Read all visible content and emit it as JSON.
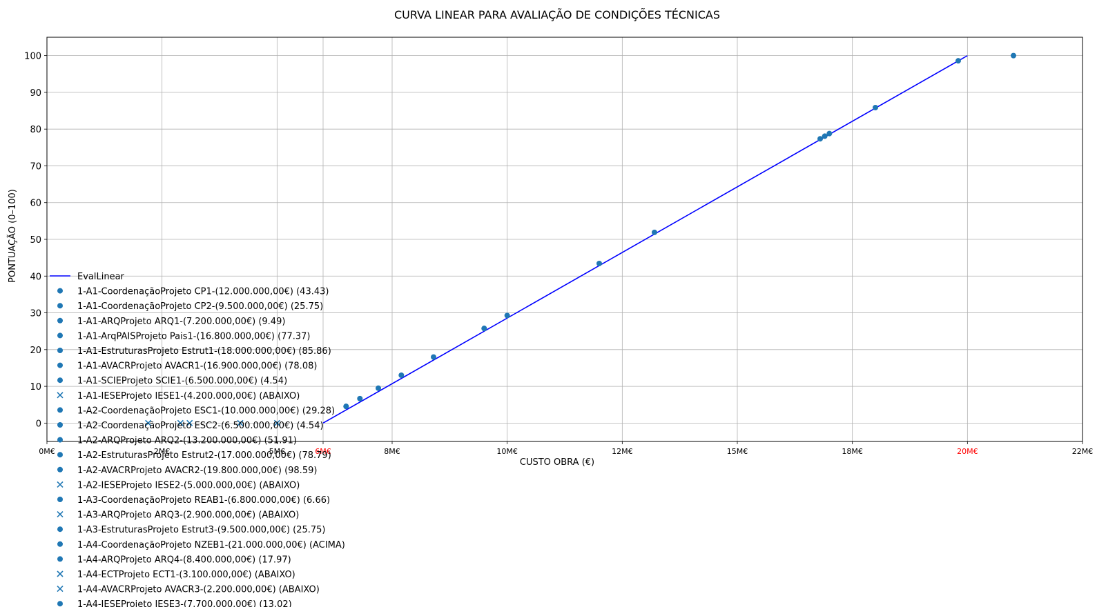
{
  "chart_data": {
    "type": "scatter",
    "title": "CURVA LINEAR PARA AVALIAÇÃO DE CONDIÇÕES TÉCNICAS",
    "xlabel": "CUSTO OBRA (€)",
    "ylabel": "PONTUAÇÃO (0–100)",
    "xlim": [
      0,
      22500000
    ],
    "ylim": [
      -5,
      105
    ],
    "grid": true,
    "legend_position": "left",
    "x_ticks": [
      {
        "value": 0,
        "label": "0M€",
        "color": "#000000"
      },
      {
        "value": 2500000,
        "label": "2M€",
        "color": "#000000"
      },
      {
        "value": 5000000,
        "label": "5M€",
        "color": "#000000"
      },
      {
        "value": 6000000,
        "label": "6M€",
        "color": "#ff0000"
      },
      {
        "value": 7500000,
        "label": "8M€",
        "color": "#000000"
      },
      {
        "value": 10000000,
        "label": "10M€",
        "color": "#000000"
      },
      {
        "value": 12500000,
        "label": "12M€",
        "color": "#000000"
      },
      {
        "value": 15000000,
        "label": "15M€",
        "color": "#000000"
      },
      {
        "value": 17500000,
        "label": "18M€",
        "color": "#000000"
      },
      {
        "value": 20000000,
        "label": "20M€",
        "color": "#ff0000"
      },
      {
        "value": 22500000,
        "label": "22M€",
        "color": "#000000"
      }
    ],
    "y_ticks": [
      {
        "value": 0,
        "label": "0"
      },
      {
        "value": 10,
        "label": "10"
      },
      {
        "value": 20,
        "label": "20"
      },
      {
        "value": 30,
        "label": "30"
      },
      {
        "value": 40,
        "label": "40"
      },
      {
        "value": 50,
        "label": "50"
      },
      {
        "value": 60,
        "label": "60"
      },
      {
        "value": 70,
        "label": "70"
      },
      {
        "value": 80,
        "label": "80"
      },
      {
        "value": 90,
        "label": "90"
      },
      {
        "value": 100,
        "label": "100"
      }
    ],
    "line": {
      "name": "EvalLinear",
      "color": "#0000ff",
      "x": [
        6000000,
        20000000
      ],
      "y": [
        0,
        100
      ]
    },
    "series": [
      {
        "name": "1-A1-CoordenaçãoProjeto CP1-(12.000.000,00€) (43.43)",
        "x": 12000000,
        "y": 43.43,
        "marker": "circle"
      },
      {
        "name": "1-A1-CoordenaçãoProjeto CP2-(9.500.000,00€) (25.75)",
        "x": 9500000,
        "y": 25.75,
        "marker": "circle"
      },
      {
        "name": "1-A1-ARQProjeto ARQ1-(7.200.000,00€) (9.49)",
        "x": 7200000,
        "y": 9.49,
        "marker": "circle"
      },
      {
        "name": "1-A1-ArqPAISProjeto Pais1-(16.800.000,00€) (77.37)",
        "x": 16800000,
        "y": 77.37,
        "marker": "circle"
      },
      {
        "name": "1-A1-EstruturasProjeto Estrut1-(18.000.000,00€) (85.86)",
        "x": 18000000,
        "y": 85.86,
        "marker": "circle"
      },
      {
        "name": "1-A1-AVACRProjeto AVACR1-(16.900.000,00€) (78.08)",
        "x": 16900000,
        "y": 78.08,
        "marker": "circle"
      },
      {
        "name": "1-A1-SCIEProjeto SCIE1-(6.500.000,00€) (4.54)",
        "x": 6500000,
        "y": 4.54,
        "marker": "circle"
      },
      {
        "name": "1-A1-IESEProjeto IESE1-(4.200.000,00€) (ABAIXO)",
        "x": 4200000,
        "y": 0,
        "marker": "x"
      },
      {
        "name": "1-A2-CoordenaçãoProjeto ESC1-(10.000.000,00€) (29.28)",
        "x": 10000000,
        "y": 29.28,
        "marker": "circle"
      },
      {
        "name": "1-A2-CoordenaçãoProjeto ESC2-(6.500.000,00€) (4.54)",
        "x": 6500000,
        "y": 4.54,
        "marker": "circle"
      },
      {
        "name": "1-A2-ARQProjeto ARQ2-(13.200.000,00€) (51.91)",
        "x": 13200000,
        "y": 51.91,
        "marker": "circle"
      },
      {
        "name": "1-A2-EstruturasProjeto Estrut2-(17.000.000,00€) (78.79)",
        "x": 17000000,
        "y": 78.79,
        "marker": "circle"
      },
      {
        "name": "1-A2-AVACRProjeto AVACR2-(19.800.000,00€) (98.59)",
        "x": 19800000,
        "y": 98.59,
        "marker": "circle"
      },
      {
        "name": "1-A2-IESEProjeto IESE2-(5.000.000,00€) (ABAIXO)",
        "x": 5000000,
        "y": 0,
        "marker": "x"
      },
      {
        "name": "1-A3-CoordenaçãoProjeto REAB1-(6.800.000,00€) (6.66)",
        "x": 6800000,
        "y": 6.66,
        "marker": "circle"
      },
      {
        "name": "1-A3-ARQProjeto ARQ3-(2.900.000,00€) (ABAIXO)",
        "x": 2900000,
        "y": 0,
        "marker": "x"
      },
      {
        "name": "1-A3-EstruturasProjeto Estrut3-(9.500.000,00€) (25.75)",
        "x": 9500000,
        "y": 25.75,
        "marker": "circle"
      },
      {
        "name": "1-A4-CoordenaçãoProjeto NZEB1-(21.000.000,00€) (ACIMA)",
        "x": 21000000,
        "y": 100,
        "marker": "circle"
      },
      {
        "name": "1-A4-ARQProjeto ARQ4-(8.400.000,00€) (17.97)",
        "x": 8400000,
        "y": 17.97,
        "marker": "circle"
      },
      {
        "name": "1-A4-ECTProjeto ECT1-(3.100.000,00€) (ABAIXO)",
        "x": 3100000,
        "y": 0,
        "marker": "x"
      },
      {
        "name": "1-A4-AVACRProjeto AVACR3-(2.200.000,00€) (ABAIXO)",
        "x": 2200000,
        "y": 0,
        "marker": "x"
      },
      {
        "name": "1-A4-IESEProjeto IESE3-(7.700.000,00€) (13.02)",
        "x": 7700000,
        "y": 13.02,
        "marker": "circle"
      }
    ],
    "marker_color": "#1f77b4"
  }
}
